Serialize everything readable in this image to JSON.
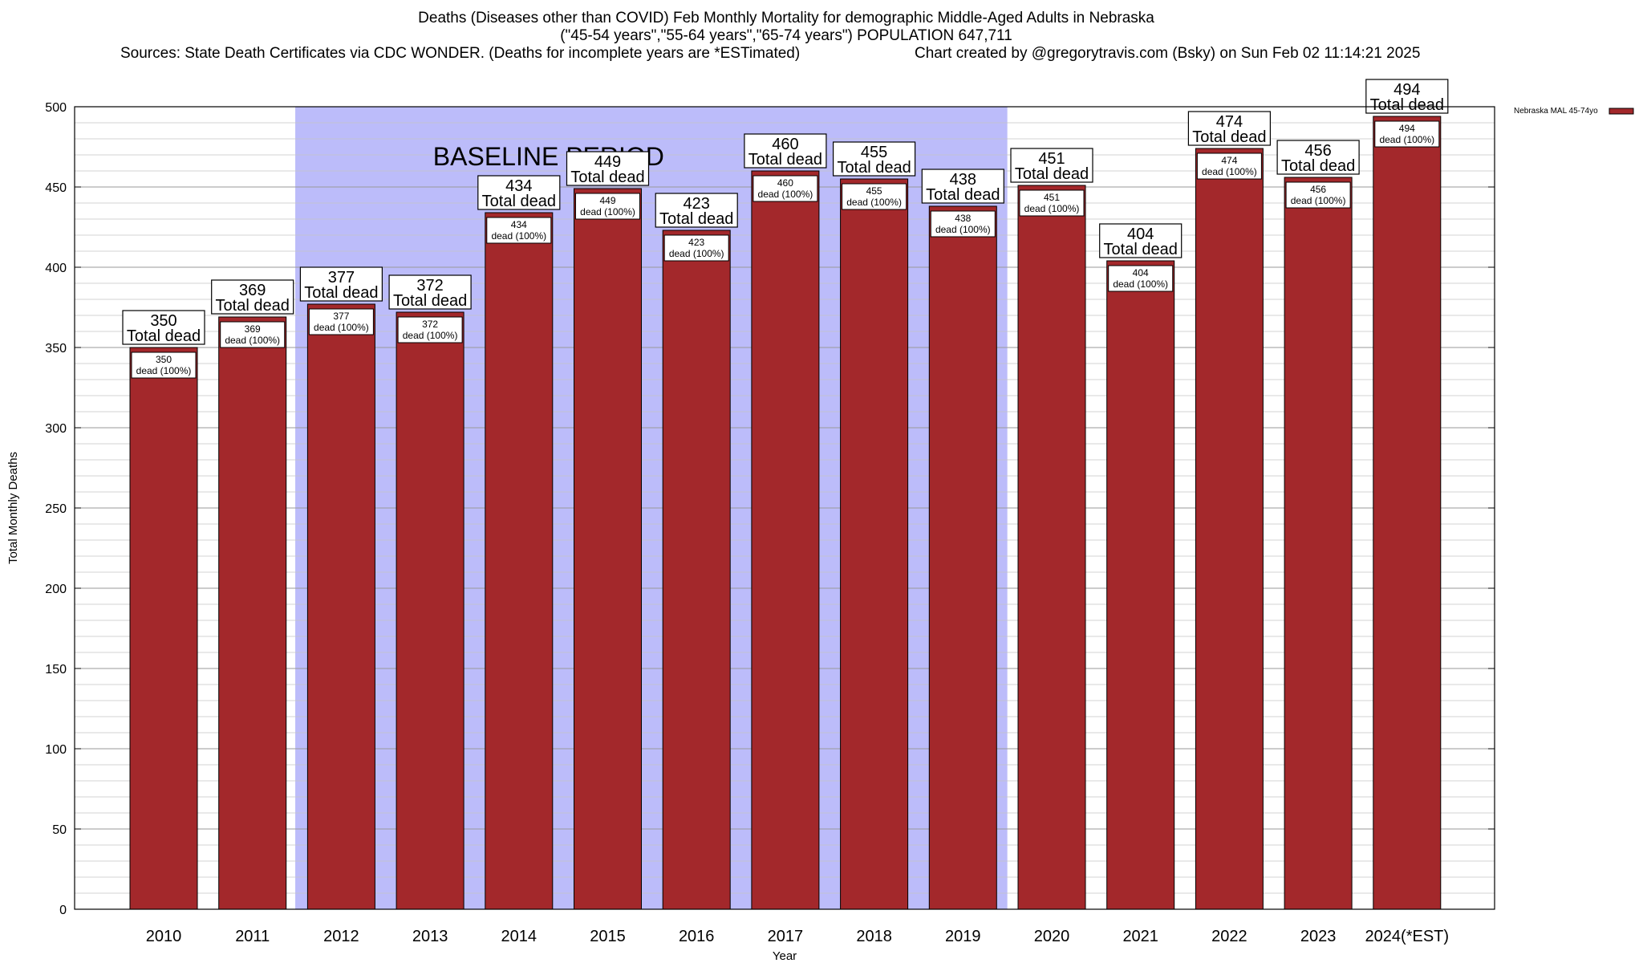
{
  "header": {
    "title_line1": "Deaths (Diseases other than COVID) Feb Monthly Mortality for demographic Middle-Aged Adults in Nebraska",
    "title_line2": "(\"45-54 years\",\"55-64 years\",\"65-74 years\") POPULATION 647,711",
    "sources": "Sources: State Death Certificates via CDC WONDER. (Deaths for incomplete years are *ESTimated)",
    "credit": "Chart created by @gregorytravis.com (Bsky) on Sun Feb 02 11:14:21 2025"
  },
  "chart_data": {
    "type": "bar",
    "categories": [
      "2010",
      "2011",
      "2012",
      "2013",
      "2014",
      "2015",
      "2016",
      "2017",
      "2018",
      "2019",
      "2020",
      "2021",
      "2022",
      "2023",
      "2024(*EST)"
    ],
    "series": [
      {
        "name": "Nebraska MAL 45-74yo",
        "values": [
          350,
          369,
          377,
          372,
          434,
          449,
          423,
          460,
          455,
          438,
          451,
          404,
          474,
          456,
          494
        ],
        "color": "#a3282b"
      }
    ],
    "xlabel": "Year",
    "ylabel": "Total Monthly Deaths",
    "ylim": [
      0,
      500
    ],
    "yticks": [
      0,
      50,
      100,
      150,
      200,
      250,
      300,
      350,
      400,
      450,
      500
    ],
    "grid": true,
    "legend_position": "top-right",
    "baseline_period": {
      "label": "BASELINE PERIOD",
      "from_category": "2012",
      "to_category": "2019",
      "color": "#bcbcfa"
    },
    "top_label_suffix": "Total dead",
    "inner_label_suffix": "dead (100%)"
  }
}
